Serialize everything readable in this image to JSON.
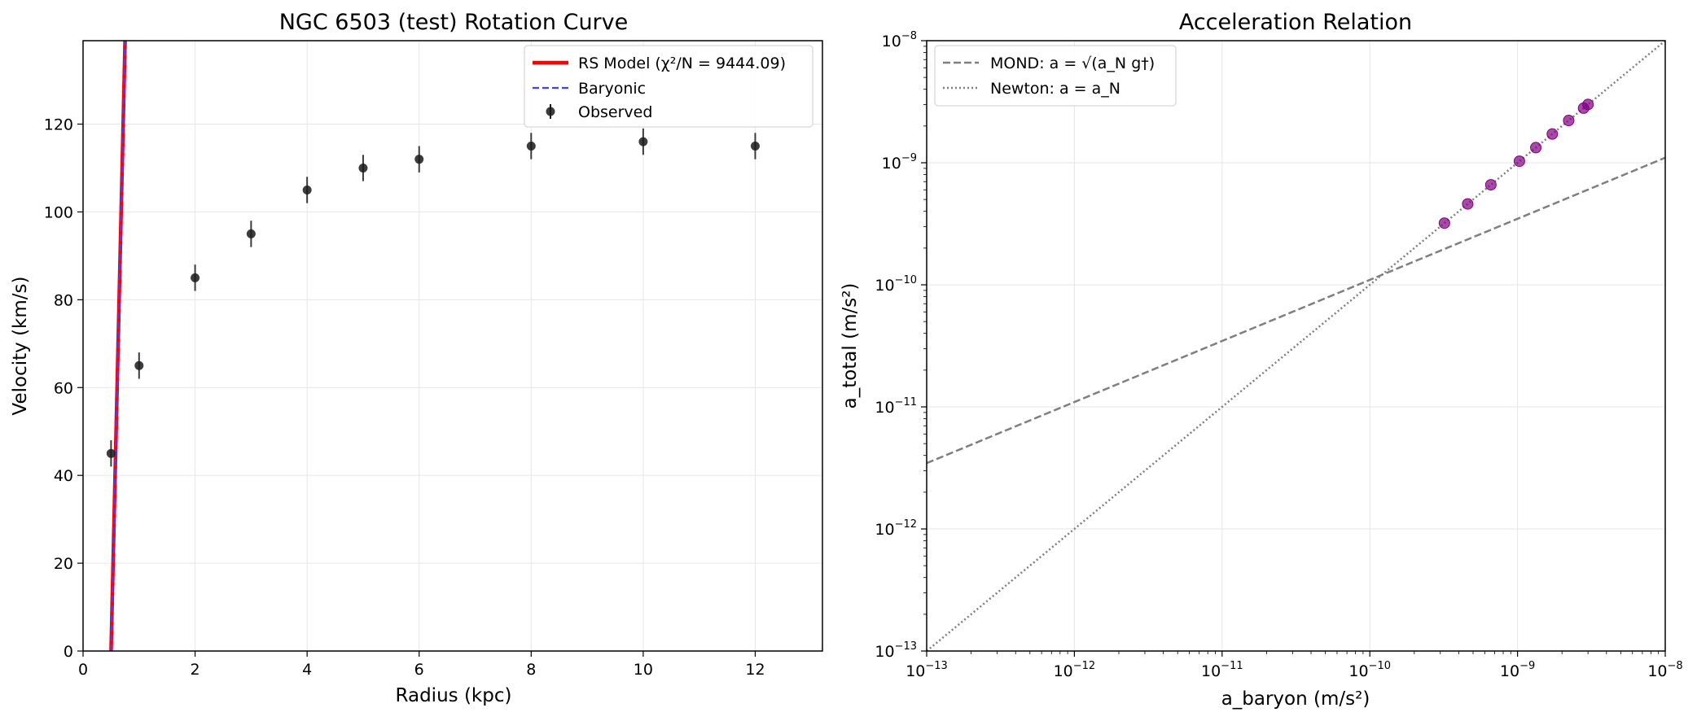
{
  "chart_data": [
    {
      "type": "line",
      "title": "NGC 6503 (test) Rotation Curve",
      "xlabel": "Radius (kpc)",
      "ylabel": "Velocity (km/s)",
      "xlim": [
        0,
        13.2
      ],
      "ylim": [
        0,
        139
      ],
      "xticks": [
        0,
        2,
        4,
        6,
        8,
        10,
        12
      ],
      "yticks": [
        0,
        20,
        40,
        60,
        80,
        100,
        120
      ],
      "grid": true,
      "legend_position": "top-right",
      "colors": {
        "model": "#ff0000",
        "baryonic": "#4040ff",
        "observed": "#1a1a1a"
      },
      "series": [
        {
          "name": "RS Model (χ²/N = 9444.09)",
          "style": "solid",
          "x": [
            0.5,
            0.75
          ],
          "y": [
            0,
            139
          ]
        },
        {
          "name": "Baryonic",
          "style": "dashed",
          "x": [
            0.5,
            0.75
          ],
          "y": [
            0,
            139
          ]
        },
        {
          "name": "Observed",
          "style": "errorbar",
          "x": [
            0.5,
            1,
            2,
            3,
            4,
            5,
            6,
            8,
            10,
            12
          ],
          "y": [
            45,
            65,
            85,
            95,
            105,
            110,
            112,
            115,
            116,
            115
          ],
          "yerr": [
            3,
            3,
            3,
            3,
            3,
            3,
            3,
            3,
            3,
            3
          ]
        }
      ]
    },
    {
      "type": "scatter",
      "title": "Acceleration Relation",
      "xlabel": "a_baryon (m/s²)",
      "ylabel": "a_total (m/s²)",
      "xscale": "log",
      "yscale": "log",
      "xlim": [
        1e-13,
        1e-08
      ],
      "ylim": [
        1e-13,
        1e-08
      ],
      "tick_exponents": [
        -13,
        -12,
        -11,
        -10,
        -9,
        -8
      ],
      "tick_base": "10",
      "grid": true,
      "legend_position": "top-left",
      "colors": {
        "mond": "#7f7f7f",
        "newton": "#7f7f7f",
        "points": "#800080"
      },
      "series": [
        {
          "name": "MOND: a = √(a_N g†)",
          "style": "dashed",
          "x": [
            1e-13,
            1e-08
          ],
          "y": [
            3.46e-12,
            1.1e-09
          ]
        },
        {
          "name": "Newton: a = a_N",
          "style": "dotted",
          "x": [
            1e-13,
            1e-08
          ],
          "y": [
            1e-13,
            1e-08
          ]
        },
        {
          "name": "",
          "style": "points",
          "x": [
            3.2e-10,
            4.6e-10,
            6.6e-10,
            1.03e-09,
            1.33e-09,
            1.72e-09,
            2.22e-09,
            2.8e-09,
            3e-09
          ],
          "y": [
            3.2e-10,
            4.6e-10,
            6.6e-10,
            1.03e-09,
            1.33e-09,
            1.72e-09,
            2.22e-09,
            2.8e-09,
            3e-09
          ]
        }
      ]
    }
  ]
}
